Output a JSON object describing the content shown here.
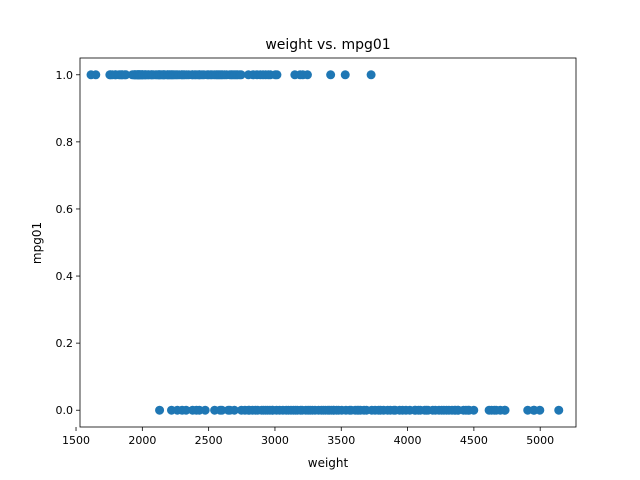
{
  "chart_data": {
    "type": "scatter",
    "title": "weight vs. mpg01",
    "xlabel": "weight",
    "ylabel": "mpg01",
    "xlim": [
      1530,
      5270
    ],
    "ylim": [
      -0.05,
      1.05
    ],
    "xticks": [
      1500,
      2000,
      2500,
      3000,
      3500,
      4000,
      4500,
      5000
    ],
    "xtick_labels": [
      "1500",
      "2000",
      "2500",
      "3000",
      "3500",
      "4000",
      "4500",
      "5000"
    ],
    "yticks": [
      0.0,
      0.2,
      0.4,
      0.6,
      0.8,
      1.0
    ],
    "ytick_labels": [
      "0.0",
      "0.2",
      "0.4",
      "0.6",
      "0.8",
      "1.0"
    ],
    "grid": false,
    "marker_color": "#1f77b4",
    "series": [
      {
        "x": [
          1613,
          1649,
          1755,
          1760,
          1773,
          1795,
          1800,
          1825,
          1835,
          1845,
          1850,
          1867,
          1875,
          1925,
          1937,
          1940,
          1945,
          1950,
          1955,
          1963,
          1965,
          1968,
          1970,
          1975,
          1978,
          1980,
          1985,
          1990,
          1995,
          2000,
          2003,
          2005,
          2019,
          2020,
          2025,
          2035,
          2045,
          2050,
          2065,
          2070,
          2075,
          2085,
          2100,
          2110,
          2120,
          2125,
          2130,
          2135,
          2145,
          2155,
          2160,
          2164,
          2171,
          2188,
          2190,
          2200,
          2205,
          2215,
          2220,
          2228,
          2234,
          2245,
          2255,
          2265,
          2278,
          2295,
          2300,
          2310,
          2320,
          2335,
          2350,
          2375,
          2380,
          2395,
          2405,
          2420,
          2430,
          2434,
          2450,
          2464,
          2490,
          2500,
          2515,
          2525,
          2542,
          2556,
          2565,
          2575,
          2585,
          2595,
          2605,
          2620,
          2635,
          2660,
          2670,
          2678,
          2690,
          2700,
          2711,
          2720,
          2735,
          2745,
          2800,
          2835,
          2865,
          2890,
          2910,
          2930,
          2950,
          2965,
          3003,
          3015,
          3150,
          3190,
          3210,
          3245,
          3420,
          3530,
          3725
        ],
        "y": [
          1,
          1,
          1,
          1,
          1,
          1,
          1,
          1,
          1,
          1,
          1,
          1,
          1,
          1,
          1,
          1,
          1,
          1,
          1,
          1,
          1,
          1,
          1,
          1,
          1,
          1,
          1,
          1,
          1,
          1,
          1,
          1,
          1,
          1,
          1,
          1,
          1,
          1,
          1,
          1,
          1,
          1,
          1,
          1,
          1,
          1,
          1,
          1,
          1,
          1,
          1,
          1,
          1,
          1,
          1,
          1,
          1,
          1,
          1,
          1,
          1,
          1,
          1,
          1,
          1,
          1,
          1,
          1,
          1,
          1,
          1,
          1,
          1,
          1,
          1,
          1,
          1,
          1,
          1,
          1,
          1,
          1,
          1,
          1,
          1,
          1,
          1,
          1,
          1,
          1,
          1,
          1,
          1,
          1,
          1,
          1,
          1,
          1,
          1,
          1,
          1,
          1,
          1,
          1,
          1,
          1,
          1,
          1,
          1,
          1,
          1,
          1,
          1,
          1,
          1,
          1,
          1,
          1,
          1
        ]
      },
      {
        "x": [
          2130,
          2220,
          2264,
          2300,
          2330,
          2379,
          2408,
          2430,
          2474,
          2545,
          2587,
          2600,
          2648,
          2660,
          2694,
          2747,
          2774,
          2800,
          2807,
          2830,
          2855,
          2870,
          2900,
          2914,
          2930,
          2945,
          2962,
          2979,
          2984,
          3012,
          3035,
          3060,
          3085,
          3102,
          3121,
          3139,
          3155,
          3169,
          3193,
          3205,
          3233,
          3250,
          3265,
          3282,
          3302,
          3329,
          3350,
          3365,
          3381,
          3399,
          3410,
          3425,
          3440,
          3445,
          3465,
          3480,
          3504,
          3535,
          3563,
          3574,
          3605,
          3620,
          3632,
          3645,
          3672,
          3690,
          3730,
          3755,
          3781,
          3794,
          3820,
          3850,
          3870,
          3897,
          3907,
          3940,
          3962,
          3988,
          4017,
          4054,
          4060,
          4082,
          4096,
          4129,
          4141,
          4154,
          4190,
          4209,
          4237,
          4257,
          4274,
          4294,
          4312,
          4335,
          4354,
          4363,
          4380,
          4382,
          4422,
          4440,
          4456,
          4464,
          4499,
          4615,
          4633,
          4654,
          4668,
          4699,
          4732,
          4735,
          4906,
          4951,
          4955,
          4997,
          5140
        ],
        "y": [
          0,
          0,
          0,
          0,
          0,
          0,
          0,
          0,
          0,
          0,
          0,
          0,
          0,
          0,
          0,
          0,
          0,
          0,
          0,
          0,
          0,
          0,
          0,
          0,
          0,
          0,
          0,
          0,
          0,
          0,
          0,
          0,
          0,
          0,
          0,
          0,
          0,
          0,
          0,
          0,
          0,
          0,
          0,
          0,
          0,
          0,
          0,
          0,
          0,
          0,
          0,
          0,
          0,
          0,
          0,
          0,
          0,
          0,
          0,
          0,
          0,
          0,
          0,
          0,
          0,
          0,
          0,
          0,
          0,
          0,
          0,
          0,
          0,
          0,
          0,
          0,
          0,
          0,
          0,
          0,
          0,
          0,
          0,
          0,
          0,
          0,
          0,
          0,
          0,
          0,
          0,
          0,
          0,
          0,
          0,
          0,
          0,
          0,
          0,
          0,
          0,
          0,
          0,
          0,
          0,
          0,
          0,
          0,
          0,
          0,
          0,
          0,
          0,
          0,
          0
        ]
      }
    ]
  }
}
